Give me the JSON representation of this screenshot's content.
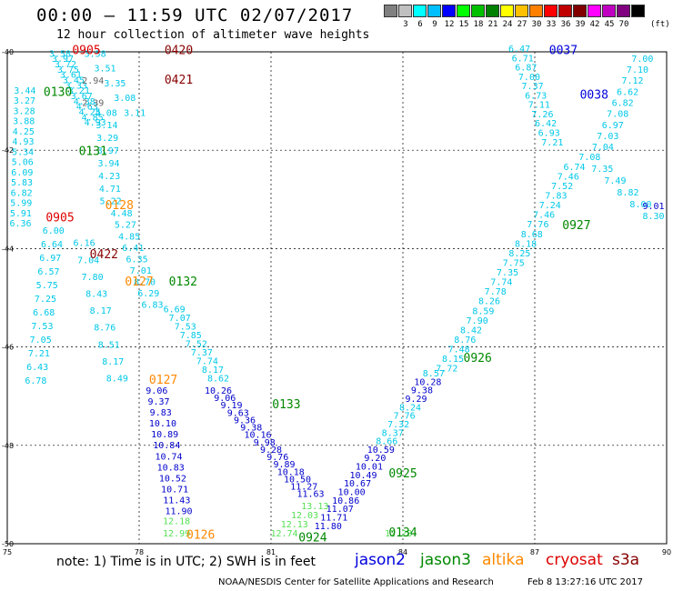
{
  "header": {
    "title": "00:00 – 11:59 UTC 02/07/2017",
    "subtitle": "12 hour collection of altimeter wave heights"
  },
  "colorbar": {
    "unit": "(ft)",
    "bins": [
      {
        "label": "",
        "color": "#808080"
      },
      {
        "label": "3",
        "color": "#c0c0c0"
      },
      {
        "label": "6",
        "color": "#00ffff"
      },
      {
        "label": "9",
        "color": "#00bfff"
      },
      {
        "label": "12",
        "color": "#0000ff"
      },
      {
        "label": "15",
        "color": "#00ff00"
      },
      {
        "label": "18",
        "color": "#00c000"
      },
      {
        "label": "21",
        "color": "#008000"
      },
      {
        "label": "24",
        "color": "#ffff00"
      },
      {
        "label": "27",
        "color": "#ffc000"
      },
      {
        "label": "30",
        "color": "#ff8000"
      },
      {
        "label": "33",
        "color": "#ff0000"
      },
      {
        "label": "36",
        "color": "#c00000"
      },
      {
        "label": "39",
        "color": "#800000"
      },
      {
        "label": "42",
        "color": "#ff00ff"
      },
      {
        "label": "45",
        "color": "#c000c0"
      },
      {
        "label": "70",
        "color": "#800080"
      },
      {
        "label": "",
        "color": "#000000"
      }
    ]
  },
  "footer": {
    "note": "note:  1) Time is in UTC;  2) SWH is in feet",
    "credit": "NOAA/NESDIS Center for Satellite Applications and Research",
    "timestamp": "Feb  8 13:27:16 UTC 2017",
    "legend": [
      {
        "name": "jason2",
        "color": "#0000dd"
      },
      {
        "name": "jason3",
        "color": "#008800"
      },
      {
        "name": "altika",
        "color": "#ff8800"
      },
      {
        "name": "cryosat",
        "color": "#dd0000"
      },
      {
        "name": "s3a",
        "color": "#880000"
      }
    ]
  },
  "chart_data": {
    "type": "scatter",
    "xlim": [
      75,
      90
    ],
    "ylim": [
      -50,
      -40
    ],
    "x_ticks": [
      "75",
      "78",
      "81",
      "84",
      "87",
      "90"
    ],
    "y_ticks": [
      "-40",
      "-42",
      "-44",
      "-46",
      "-48",
      "-50"
    ],
    "grid": true,
    "pass_labels": [
      {
        "text": "0905",
        "x": 76.8,
        "y": -40.05,
        "color": "#dd0000"
      },
      {
        "text": "0420",
        "x": 78.9,
        "y": -40.05,
        "color": "#880000"
      },
      {
        "text": "0421",
        "x": 78.9,
        "y": -40.65,
        "color": "#880000"
      },
      {
        "text": "0130",
        "x": 76.15,
        "y": -40.9,
        "color": "#008800"
      },
      {
        "text": "0131",
        "x": 76.95,
        "y": -42.1,
        "color": "#008800"
      },
      {
        "text": "0128",
        "x": 77.55,
        "y": -43.2,
        "color": "#ff8800"
      },
      {
        "text": "0905",
        "x": 76.2,
        "y": -43.45,
        "color": "#dd0000"
      },
      {
        "text": "0422",
        "x": 77.2,
        "y": -44.2,
        "color": "#880000"
      },
      {
        "text": "0127",
        "x": 78.0,
        "y": -44.75,
        "color": "#ff8800"
      },
      {
        "text": "0132",
        "x": 79.0,
        "y": -44.75,
        "color": "#008800"
      },
      {
        "text": "0127",
        "x": 78.55,
        "y": -46.75,
        "color": "#ff8800"
      },
      {
        "text": "0133",
        "x": 81.35,
        "y": -47.25,
        "color": "#008800"
      },
      {
        "text": "0925",
        "x": 84.0,
        "y": -48.65,
        "color": "#008800"
      },
      {
        "text": "0924",
        "x": 81.95,
        "y": -49.95,
        "color": "#008800"
      },
      {
        "text": "0126",
        "x": 79.4,
        "y": -49.9,
        "color": "#ff8800"
      },
      {
        "text": "0134",
        "x": 84.0,
        "y": -49.85,
        "color": "#008800"
      },
      {
        "text": "0926",
        "x": 85.7,
        "y": -46.3,
        "color": "#008800"
      },
      {
        "text": "0927",
        "x": 87.95,
        "y": -43.6,
        "color": "#008800"
      },
      {
        "text": "0037",
        "x": 87.65,
        "y": -40.05,
        "color": "#0000dd"
      },
      {
        "text": "0038",
        "x": 88.35,
        "y": -40.95,
        "color": "#0000dd"
      }
    ],
    "series": [
      {
        "name": "jason3",
        "tracks": [
          {
            "x0": 76.2,
            "y0": -40.1,
            "x1": 77.0,
            "y1": -41.5,
            "values": [
              3.58,
              3.97,
              3.72,
              3.75,
              3.61,
              3.45,
              3.33,
              3.21,
              3.67,
              4.38,
              4.63,
              4.25,
              4.85,
              4.93
            ]
          },
          {
            "x0": 75.4,
            "y0": -40.85,
            "x1": 75.3,
            "y1": -43.55,
            "values": [
              3.44,
              3.27,
              3.28,
              3.88,
              4.25,
              4.93,
              5.34,
              5.06,
              6.09,
              5.83,
              6.82,
              5.99,
              5.91,
              6.36
            ]
          },
          {
            "x0": 76.05,
            "y0": -43.7,
            "x1": 75.65,
            "y1": -46.75,
            "values": [
              6.0,
              6.64,
              6.97,
              6.57,
              5.75,
              7.25,
              6.68,
              7.53,
              7.05,
              7.21,
              6.43,
              6.78
            ]
          },
          {
            "x0": 77.0,
            "y0": -40.1,
            "x1": 77.9,
            "y1": -41.3,
            "values": [
              3.58,
              3.51,
              3.35,
              3.08,
              3.11
            ]
          },
          {
            "x0": 77.25,
            "y0": -41.3,
            "x1": 77.35,
            "y1": -43.1,
            "values": [
              4.08,
              3.14,
              3.29,
              3.97,
              3.94,
              4.23,
              4.71,
              5.22
            ]
          },
          {
            "x0": 77.6,
            "y0": -43.35,
            "x1": 78.3,
            "y1": -45.2,
            "values": [
              4.48,
              5.27,
              4.85,
              6.41,
              6.35,
              7.01,
              8.7,
              6.29,
              6.83
            ]
          },
          {
            "x0": 78.8,
            "y0": -45.3,
            "x1": 79.8,
            "y1": -46.7,
            "values": [
              6.69,
              7.07,
              7.53,
              7.85,
              7.52,
              7.37,
              7.74,
              8.17,
              8.62
            ]
          },
          {
            "x0": 76.75,
            "y0": -43.95,
            "x1": 77.5,
            "y1": -46.7,
            "values": [
              6.16,
              7.04,
              7.8,
              8.43,
              8.17,
              8.76,
              8.51,
              8.17,
              8.49
            ]
          },
          {
            "x0": 86.65,
            "y0": -40.0,
            "x1": 87.4,
            "y1": -41.9,
            "values": [
              6.47,
              6.71,
              6.87,
              7.0,
              7.37,
              6.73,
              7.11,
              7.26,
              6.42,
              6.93,
              7.21
            ]
          },
          {
            "x0": 89.45,
            "y0": -40.2,
            "x1": 88.55,
            "y1": -42.0,
            "values": [
              7.0,
              7.1,
              7.12,
              6.62,
              6.82,
              7.08,
              6.97,
              7.03,
              7.04
            ]
          },
          {
            "x0": 88.25,
            "y0": -42.2,
            "x1": 89.7,
            "y1": -43.4,
            "values": [
              7.08,
              7.35,
              7.49,
              8.82,
              8.0,
              8.3
            ]
          },
          {
            "x0": 87.9,
            "y0": -42.4,
            "x1": 85.0,
            "y1": -46.5,
            "values": [
              6.74,
              7.46,
              7.52,
              7.83,
              7.24,
              7.46,
              7.76,
              8.68,
              8.18,
              8.25,
              7.75,
              7.35,
              7.74,
              7.78,
              8.26,
              8.59,
              7.9,
              8.42,
              8.76,
              7.48,
              8.15,
              7.72
            ]
          }
        ]
      },
      {
        "name": "jason2",
        "tracks": [
          {
            "x0": 78.4,
            "y0": -46.95,
            "x1": 78.9,
            "y1": -49.4,
            "values": [
              9.06,
              9.37,
              9.83,
              10.1,
              10.89,
              10.84,
              10.74,
              10.83,
              10.52,
              10.71,
              11.43,
              11.9
            ]
          },
          {
            "x0": 79.8,
            "y0": -46.95,
            "x1": 81.9,
            "y1": -49.05,
            "values": [
              10.26,
              9.06,
              9.19,
              9.63,
              9.36,
              9.38,
              10.16,
              9.98,
              9.28,
              9.76,
              9.89,
              10.18,
              10.5,
              11.27,
              11.63
            ]
          },
          {
            "x0": 84.7,
            "y0": -46.6,
            "x1": 82.3,
            "y1": -49.7,
            "values": [
              8.57,
              10.28,
              9.38,
              9.29,
              8.24,
              7.76,
              7.32,
              8.37,
              8.66,
              10.59,
              9.2,
              10.01,
              10.49,
              10.67,
              10.0,
              10.86,
              11.07,
              11.71,
              11.8
            ]
          },
          {
            "x0": 89.7,
            "y0": -43.2,
            "x1": 89.8,
            "y1": -43.45,
            "values": [
              9.01
            ]
          }
        ]
      },
      {
        "name": "jason2-light",
        "tracks": [
          {
            "x0": 78.85,
            "y0": -49.6,
            "x1": 78.85,
            "y1": -49.85,
            "values": [
              12.18,
              12.99
            ]
          },
          {
            "x0": 82.0,
            "y0": -49.3,
            "x1": 81.3,
            "y1": -49.85,
            "values": [
              13.13,
              12.03,
              12.13,
              12.74
            ]
          },
          {
            "x0": 83.9,
            "y0": -49.85,
            "x1": 83.9,
            "y1": -49.85,
            "values": [
              12.28
            ]
          }
        ]
      },
      {
        "name": "altika",
        "tracks": [
          {
            "x0": 76.95,
            "y0": -40.65,
            "x1": 76.95,
            "y1": -41.1,
            "values": [
              2.94,
              2.39
            ]
          }
        ]
      }
    ]
  }
}
